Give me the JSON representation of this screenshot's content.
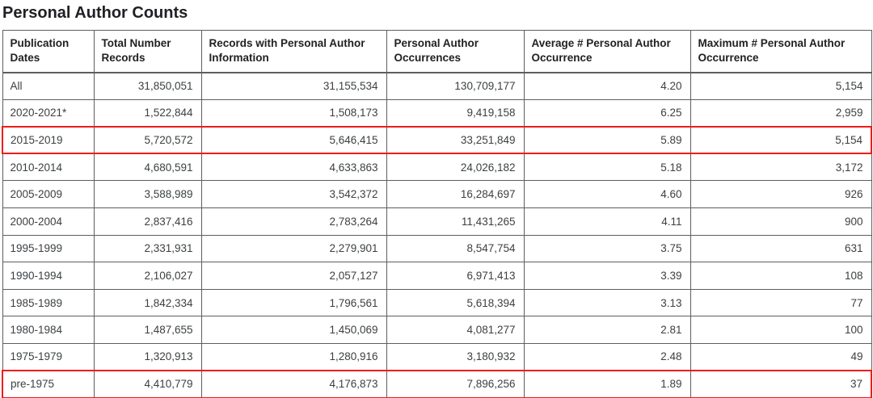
{
  "page_title": "Personal Author Counts",
  "colors": {
    "annotation_red": "#ee1c19",
    "table_border_gray": "#5d5e60",
    "header_text": "#202124",
    "cell_text": "#3c4043",
    "background": "#ffffff"
  },
  "chart_data": {
    "type": "table",
    "title": "Personal Author Counts",
    "columns": [
      "Publication Dates",
      "Total Number Records",
      "Records with Personal Author Information",
      "Personal Author Occurrences",
      "Average # Personal Author Occurrence",
      "Maximum # Personal Author Occurrence"
    ],
    "rows": [
      [
        "All",
        "31,850,051",
        "31,155,534",
        "130,709,177",
        "4.20",
        "5,154"
      ],
      [
        "2020-2021*",
        "1,522,844",
        "1,508,173",
        "9,419,158",
        "6.25",
        "2,959"
      ],
      [
        "2015-2019",
        "5,720,572",
        "5,646,415",
        "33,251,849",
        "5.89",
        "5,154"
      ],
      [
        "2010-2014",
        "4,680,591",
        "4,633,863",
        "24,026,182",
        "5.18",
        "3,172"
      ],
      [
        "2005-2009",
        "3,588,989",
        "3,542,372",
        "16,284,697",
        "4.60",
        "926"
      ],
      [
        "2000-2004",
        "2,837,416",
        "2,783,264",
        "11,431,265",
        "4.11",
        "900"
      ],
      [
        "1995-1999",
        "2,331,931",
        "2,279,901",
        "8,547,754",
        "3.75",
        "631"
      ],
      [
        "1990-1994",
        "2,106,027",
        "2,057,127",
        "6,971,413",
        "3.39",
        "108"
      ],
      [
        "1985-1989",
        "1,842,334",
        "1,796,561",
        "5,618,394",
        "3.13",
        "77"
      ],
      [
        "1980-1984",
        "1,487,655",
        "1,450,069",
        "4,081,277",
        "2.81",
        "100"
      ],
      [
        "1975-1979",
        "1,320,913",
        "1,280,916",
        "3,180,932",
        "2.48",
        "49"
      ],
      [
        "pre-1975",
        "4,410,779",
        "4,176,873",
        "7,896,256",
        "1.89",
        "37"
      ]
    ],
    "highlighted_row_indexes": [
      2,
      11
    ],
    "legend_position": "none",
    "grid": true
  }
}
